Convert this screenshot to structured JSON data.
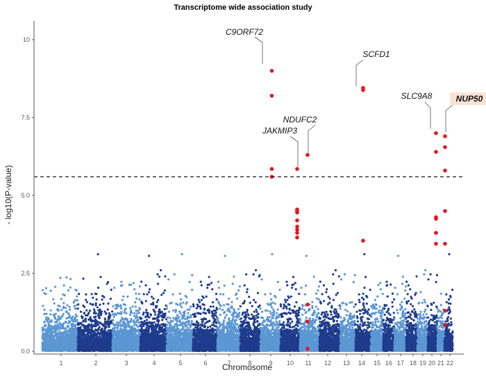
{
  "chart_data": {
    "type": "scatter",
    "subtype": "manhattan",
    "title": "Transcriptome wide association study",
    "xlabel": "Chromosome",
    "ylabel": "- log10(P-value)",
    "ylim": [
      0,
      10.5
    ],
    "yticks": [
      "0.0",
      "2.5",
      "5.0",
      "7.5",
      "10"
    ],
    "ytick_values": [
      0,
      2.5,
      5,
      7.5,
      10
    ],
    "categories": [
      "1",
      "2",
      "3",
      "4",
      "5",
      "6",
      "7",
      "8",
      "9",
      "10",
      "11",
      "12",
      "13",
      "14",
      "15",
      "16",
      "17",
      "18",
      "19",
      "20",
      "21",
      "22"
    ],
    "significance_threshold": 5.6,
    "threshold_style": "dashed",
    "grid": false,
    "colors": {
      "odd_chromosomes": "#5b97d3",
      "even_chromosomes": "#1f3b8c",
      "highlight": "#e8161f",
      "label_highlight_bg": "#fbe3d4"
    },
    "highlighted_points": [
      {
        "chr": "9",
        "values": [
          9.0,
          8.2,
          5.85,
          5.6
        ]
      },
      {
        "chr": "10",
        "values": [
          5.85,
          4.55,
          4.5,
          4.45,
          4.2,
          4.0,
          3.9,
          3.8,
          3.65
        ]
      },
      {
        "chr": "11",
        "values": [
          6.3,
          1.5,
          0.95,
          0.08
        ]
      },
      {
        "chr": "14",
        "values": [
          8.45,
          8.38,
          3.55
        ]
      },
      {
        "chr": "20",
        "values": [
          7.0,
          6.4,
          4.3,
          4.25,
          3.8,
          3.45
        ]
      },
      {
        "chr": "22",
        "values": [
          6.9,
          6.55,
          5.8,
          4.5,
          3.45,
          1.3,
          0.85
        ]
      }
    ],
    "annotations": [
      {
        "label": "C9ORF72",
        "chr": "9",
        "value": 9.0,
        "emphasized": false
      },
      {
        "label": "JAKMIP3",
        "chr": "10",
        "value": 5.85,
        "emphasized": false
      },
      {
        "label": "NDUFC2",
        "chr": "11",
        "value": 6.3,
        "emphasized": false
      },
      {
        "label": "SCFD1",
        "chr": "14",
        "value": 8.45,
        "emphasized": false
      },
      {
        "label": "SLC9A8",
        "chr": "20",
        "value": 7.0,
        "emphasized": false
      },
      {
        "label": "NUP50",
        "chr": "22",
        "value": 6.9,
        "emphasized": true
      }
    ]
  }
}
